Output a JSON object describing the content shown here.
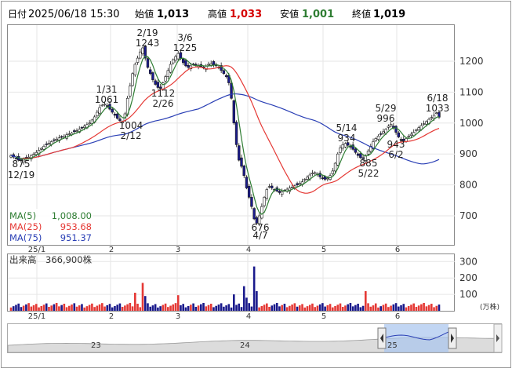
{
  "header": {
    "date_label": "日付",
    "datetime": "2025/06/18 15:30",
    "open_label": "始値",
    "open_value": "1,013",
    "high_label": "高値",
    "high_value": "1,033",
    "low_label": "安値",
    "low_value": "1,001",
    "close_label": "終値",
    "close_value": "1,019"
  },
  "legend": {
    "ma5_label": "MA(5)",
    "ma5_value": "1,008.00",
    "ma25_label": "MA(25)",
    "ma25_value": "953.68",
    "ma75_label": "MA(75)",
    "ma75_value": "951.37"
  },
  "volume": {
    "label": "出来高",
    "value": "366,900株",
    "unit": "(万株)"
  },
  "colors": {
    "up_candle": "#ffffff",
    "down_candle": "#1a1a8c",
    "ma5": "#2e7d32",
    "ma25": "#e53935",
    "ma75": "#2a3fb5",
    "volume_up": "#e53935",
    "volume_down": "#1a1a8c",
    "high_value": "#d50000",
    "low_value": "#2e7d32"
  },
  "chart_data": {
    "type": "candlestick",
    "price_ticks": [
      "1200",
      "1100",
      "1000",
      "900",
      "800",
      "700"
    ],
    "price_tick_values": [
      1200,
      1100,
      1000,
      900,
      800,
      700
    ],
    "ylim": [
      640,
      1300
    ],
    "volume_ticks": [
      "300",
      "200",
      "100"
    ],
    "volume_tick_values": [
      300,
      200,
      100
    ],
    "volume_ylim": [
      0,
      340
    ],
    "x_labels": [
      "25/1",
      "2",
      "3",
      "4",
      "5",
      "6"
    ],
    "navigator_labels": [
      "23",
      "24",
      "25"
    ],
    "annotations": [
      {
        "date": "12/19",
        "value": "875"
      },
      {
        "date": "1/31",
        "value": "1061"
      },
      {
        "date": "2/12",
        "value": "1004"
      },
      {
        "date": "2/19",
        "value": "1243"
      },
      {
        "date": "2/26",
        "value": "1112"
      },
      {
        "date": "3/6",
        "value": "1225"
      },
      {
        "date": "4/7",
        "value": "676"
      },
      {
        "date": "5/14",
        "value": "934"
      },
      {
        "date": "5/22",
        "value": "885"
      },
      {
        "date": "5/29",
        "value": "996"
      },
      {
        "date": "6/2",
        "value": "943"
      },
      {
        "date": "6/18",
        "value": "1033"
      }
    ]
  }
}
